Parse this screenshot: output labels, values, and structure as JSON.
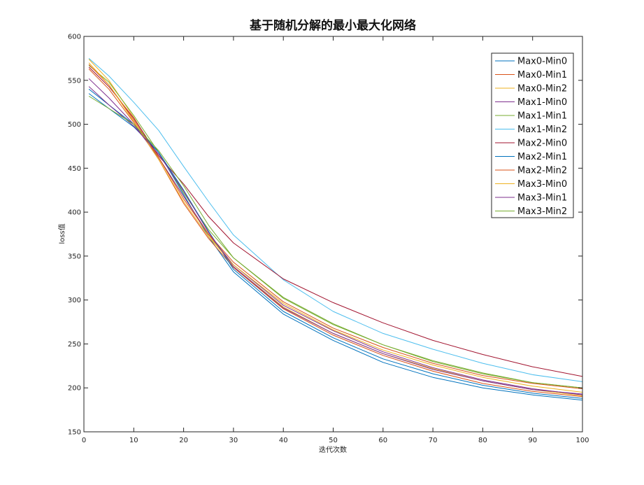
{
  "chart_data": {
    "type": "line",
    "title": "基于随机分解的最小最大化网络",
    "xlabel": "迭代次数",
    "ylabel": "loss值",
    "xlim": [
      0,
      100
    ],
    "ylim": [
      150,
      600
    ],
    "xticks": [
      0,
      10,
      20,
      30,
      40,
      50,
      60,
      70,
      80,
      90,
      100
    ],
    "yticks": [
      150,
      200,
      250,
      300,
      350,
      400,
      450,
      500,
      550,
      600
    ],
    "grid": false,
    "legend_position": "top-right",
    "x": [
      1,
      5,
      10,
      15,
      20,
      25,
      30,
      40,
      50,
      60,
      70,
      80,
      90,
      100
    ],
    "series": [
      {
        "name": "Max0-Min0",
        "color": "#0072BD",
        "values": [
          535,
          518,
          497,
          468,
          420,
          372,
          332,
          284,
          254,
          229,
          212,
          200,
          192,
          186
        ]
      },
      {
        "name": "Max0-Min1",
        "color": "#D95319",
        "values": [
          563,
          540,
          502,
          460,
          410,
          370,
          337,
          290,
          260,
          237,
          219,
          205,
          196,
          190
        ]
      },
      {
        "name": "Max0-Min2",
        "color": "#EDB120",
        "values": [
          574,
          550,
          508,
          462,
          418,
          374,
          338,
          292,
          262,
          239,
          222,
          208,
          198,
          191
        ]
      },
      {
        "name": "Max1-Min0",
        "color": "#7E2F8E",
        "values": [
          552,
          530,
          500,
          462,
          418,
          375,
          340,
          294,
          265,
          241,
          223,
          209,
          199,
          192
        ]
      },
      {
        "name": "Max1-Min1",
        "color": "#77AC30",
        "values": [
          567,
          548,
          510,
          468,
          422,
          380,
          348,
          303,
          273,
          249,
          230,
          216,
          206,
          200
        ]
      },
      {
        "name": "Max1-Min2",
        "color": "#4DBEEE",
        "values": [
          575,
          555,
          525,
          493,
          452,
          412,
          374,
          323,
          287,
          262,
          244,
          228,
          215,
          207
        ]
      },
      {
        "name": "Max2-Min0",
        "color": "#A2142F",
        "values": [
          565,
          543,
          507,
          464,
          432,
          395,
          365,
          324,
          297,
          274,
          254,
          238,
          224,
          213
        ]
      },
      {
        "name": "Max2-Min1",
        "color": "#0072BD",
        "values": [
          540,
          522,
          500,
          468,
          425,
          378,
          335,
          287,
          257,
          233,
          216,
          203,
          194,
          188
        ]
      },
      {
        "name": "Max2-Min2",
        "color": "#D95319",
        "values": [
          568,
          545,
          505,
          462,
          415,
          375,
          343,
          298,
          268,
          246,
          228,
          214,
          205,
          199
        ]
      },
      {
        "name": "Max3-Min0",
        "color": "#EDB120",
        "values": [
          570,
          545,
          503,
          460,
          412,
          372,
          340,
          296,
          266,
          243,
          226,
          212,
          202,
          195
        ]
      },
      {
        "name": "Max3-Min1",
        "color": "#7E2F8E",
        "values": [
          543,
          522,
          498,
          466,
          424,
          377,
          338,
          291,
          262,
          239,
          221,
          208,
          198,
          193
        ]
      },
      {
        "name": "Max3-Min2",
        "color": "#77AC30",
        "values": [
          532,
          518,
          500,
          470,
          430,
          385,
          348,
          302,
          272,
          249,
          231,
          217,
          206,
          200
        ]
      }
    ]
  }
}
